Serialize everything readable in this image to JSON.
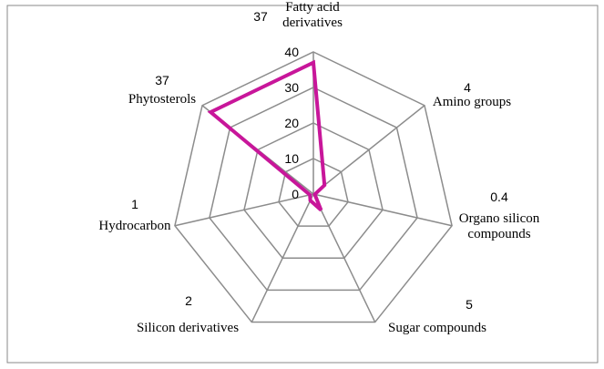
{
  "chart_data": {
    "type": "radar",
    "categories": [
      "Fatty acid derivatives",
      "Amino groups",
      "Organo silicon compounds",
      "Sugar compounds",
      "Silicon derivatives",
      "Hydrocarbon",
      "Phytosterols"
    ],
    "values": [
      37,
      4,
      0.4,
      5,
      2,
      1,
      37
    ],
    "color": "#c8169a",
    "ylim": [
      0,
      40
    ],
    "yticks": [
      0,
      10,
      20,
      30,
      40
    ],
    "grid": true
  }
}
